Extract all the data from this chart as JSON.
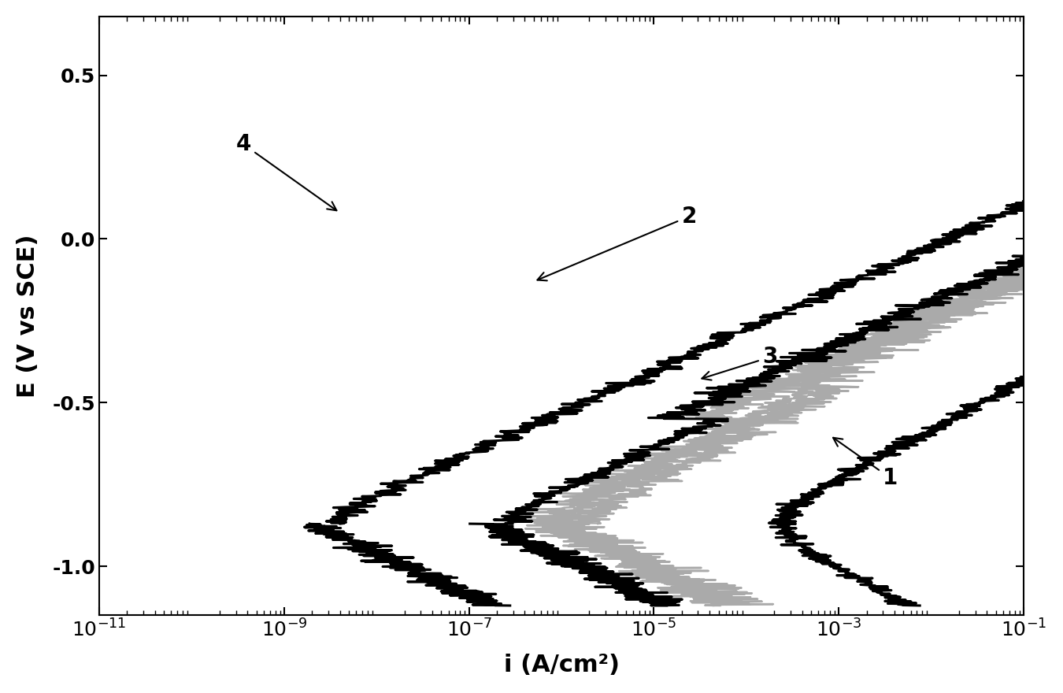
{
  "xlabel": "i (A/cm²)",
  "ylabel": "E (V vs SCE)",
  "xlim": [
    1e-11,
    0.1
  ],
  "ylim": [
    -1.15,
    0.68
  ],
  "yticks": [
    -1.0,
    -0.5,
    0.0,
    0.5
  ],
  "ytick_labels": [
    "-1.0",
    "-0.5",
    "0.0",
    "0.5"
  ],
  "xtick_labels": [
    "$10^{-11}$",
    "$10^{-9}$",
    "$10^{-7}$",
    "$10^{-5}$",
    "$10^{-3}$",
    "$10^{-1}$"
  ],
  "xtick_vals": [
    1e-11,
    1e-09,
    1e-07,
    1e-05,
    0.001,
    0.1
  ],
  "background_color": "#ffffff",
  "curve_color": "#000000",
  "gray_color": "#aaaaaa",
  "lw_black": 2.2,
  "lw_gray": 1.8,
  "curve1": {
    "E_corr": -0.87,
    "i_corr": 0.00012,
    "ba": 0.065,
    "bc": 0.065,
    "E_min": -1.12,
    "E_max": 0.6
  },
  "curve2": {
    "E_corr": -0.87,
    "i_corr": 1.5e-07,
    "ba": 0.055,
    "bc": 0.055,
    "E_min": -1.12,
    "E_max": 0.6
  },
  "curve3": {
    "E_corr": -0.87,
    "i_corr": 6e-07,
    "ba": 0.062,
    "bc": 0.055,
    "E_min": -1.12,
    "E_max": 0.35
  },
  "curve4": {
    "E_corr": -0.87,
    "i_corr": 2e-09,
    "ba": 0.055,
    "bc": 0.055,
    "E_min": -0.87,
    "E_max": 0.62
  }
}
